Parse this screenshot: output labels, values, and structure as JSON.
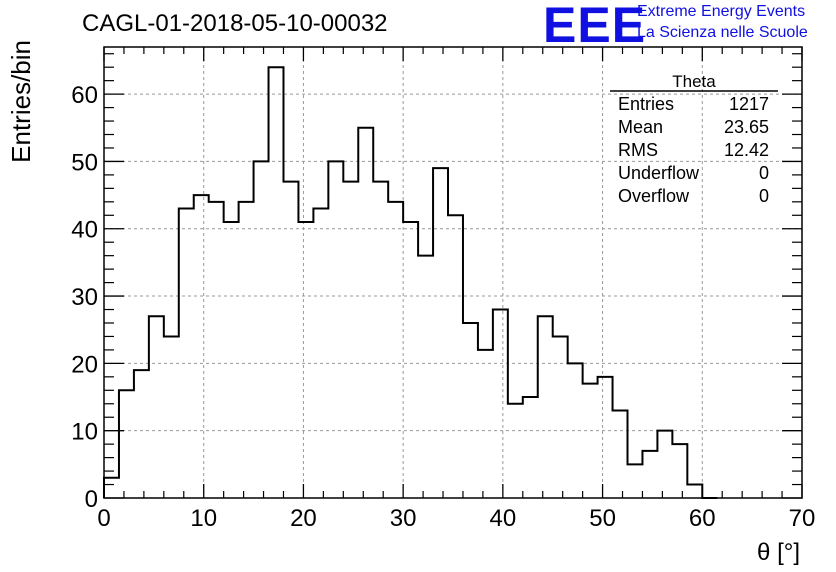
{
  "title": "CAGL-01-2018-05-10-00032",
  "logo": {
    "mark": "EEE",
    "line1": "Extreme Energy Events",
    "line2": "La Scienza nelle Scuole",
    "color": "#1010e0"
  },
  "stats": {
    "name": "Theta",
    "rows": [
      {
        "label": "Entries",
        "value": "1217"
      },
      {
        "label": "Mean",
        "value": "23.65"
      },
      {
        "label": "RMS",
        "value": "12.42"
      },
      {
        "label": "Underflow",
        "value": "0"
      },
      {
        "label": "Overflow",
        "value": "0"
      }
    ]
  },
  "chart_data": {
    "type": "histogram",
    "xlabel": "θ [°]",
    "ylabel": "Entries/bin",
    "xlim": [
      0,
      70
    ],
    "ylim": [
      0,
      67
    ],
    "xticks": [
      "0",
      "10",
      "20",
      "30",
      "40",
      "50",
      "60",
      "70"
    ],
    "yticks": [
      "0",
      "10",
      "20",
      "30",
      "40",
      "50",
      "60"
    ],
    "grid": true,
    "bin_width": 1.5,
    "first_bin_start": 0,
    "counts": [
      3,
      16,
      19,
      27,
      24,
      43,
      45,
      44,
      41,
      44,
      50,
      64,
      47,
      41,
      43,
      50,
      47,
      55,
      47,
      44,
      41,
      36,
      49,
      42,
      26,
      22,
      28,
      14,
      15,
      27,
      24,
      20,
      17,
      18,
      13,
      5,
      7,
      10,
      8,
      2,
      0
    ]
  }
}
